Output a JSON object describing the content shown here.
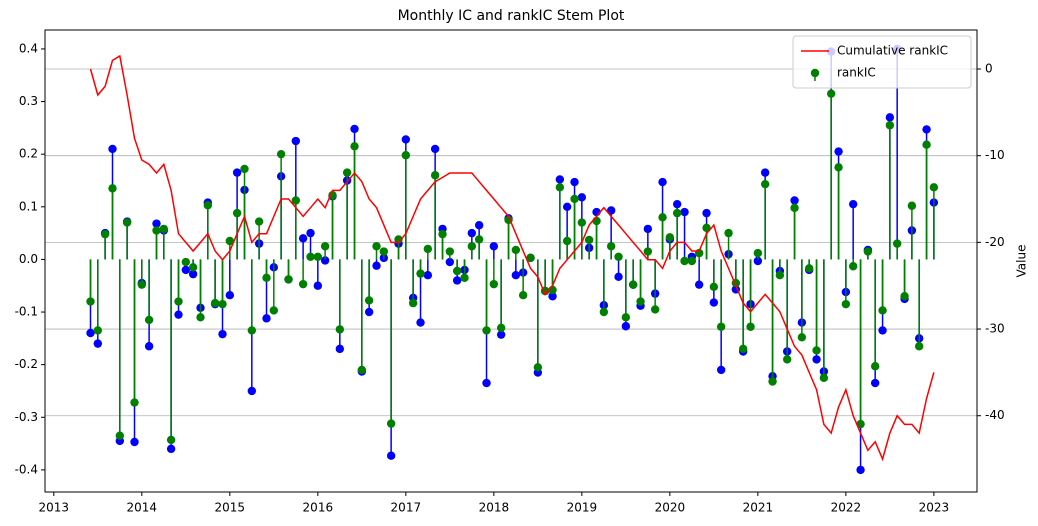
{
  "chart_data": {
    "type": "stem",
    "title": "Monthly IC and rankIC Stem Plot",
    "y2label": "Value",
    "x": [
      2013.417,
      2013.5,
      2013.583,
      2013.667,
      2013.75,
      2013.833,
      2013.917,
      2014.0,
      2014.083,
      2014.167,
      2014.25,
      2014.333,
      2014.417,
      2014.5,
      2014.583,
      2014.667,
      2014.75,
      2014.833,
      2014.917,
      2015.0,
      2015.083,
      2015.167,
      2015.25,
      2015.333,
      2015.417,
      2015.5,
      2015.583,
      2015.667,
      2015.75,
      2015.833,
      2015.917,
      2016.0,
      2016.083,
      2016.167,
      2016.25,
      2016.333,
      2016.417,
      2016.5,
      2016.583,
      2016.667,
      2016.75,
      2016.833,
      2016.917,
      2017.0,
      2017.083,
      2017.167,
      2017.25,
      2017.333,
      2017.417,
      2017.5,
      2017.583,
      2017.667,
      2017.75,
      2017.833,
      2017.917,
      2018.0,
      2018.083,
      2018.167,
      2018.25,
      2018.333,
      2018.417,
      2018.5,
      2018.583,
      2018.667,
      2018.75,
      2018.833,
      2018.917,
      2019.0,
      2019.083,
      2019.167,
      2019.25,
      2019.333,
      2019.417,
      2019.5,
      2019.583,
      2019.667,
      2019.75,
      2019.833,
      2019.917,
      2020.0,
      2020.083,
      2020.167,
      2020.25,
      2020.333,
      2020.417,
      2020.5,
      2020.583,
      2020.667,
      2020.75,
      2020.833,
      2020.917,
      2021.0,
      2021.083,
      2021.167,
      2021.25,
      2021.333,
      2021.417,
      2021.5,
      2021.583,
      2021.667,
      2021.75,
      2021.833,
      2021.917,
      2022.0,
      2022.083,
      2022.167,
      2022.25,
      2022.333,
      2022.417,
      2022.5,
      2022.583,
      2022.667,
      2022.75,
      2022.833,
      2022.917,
      2023.0
    ],
    "series": [
      {
        "name": "Cumulative rankIC",
        "color": "red",
        "type": "line",
        "axis": "y2",
        "values": [
          0,
          -3,
          -2,
          1,
          1.5,
          -3,
          -8,
          -10.5,
          -11,
          -12,
          -11,
          -14,
          -19,
          -20,
          -21,
          -20,
          -19,
          -21,
          -22,
          -21,
          -19,
          -17,
          -20,
          -19,
          -19,
          -17,
          -15,
          -15,
          -16,
          -17,
          -16,
          -15,
          -16,
          -14,
          -14,
          -13,
          -12,
          -13,
          -15,
          -16,
          -18,
          -20,
          -20,
          -19,
          -17,
          -15,
          -14,
          -13,
          -12.5,
          -12,
          -12,
          -12,
          -12,
          -13,
          -14,
          -15,
          -16,
          -17,
          -19,
          -21,
          -23,
          -24,
          -26,
          -25,
          -23,
          -22,
          -21,
          -20,
          -18,
          -17,
          -16,
          -17,
          -18,
          -19,
          -20,
          -21,
          -22,
          -22,
          -23,
          -21,
          -20,
          -20,
          -21,
          -21,
          -19,
          -18,
          -21,
          -23,
          -25,
          -27,
          -28,
          -27,
          -26,
          -27,
          -28,
          -30,
          -32,
          -33,
          -35,
          -37,
          -41,
          -42,
          -39,
          -37,
          -40,
          -42,
          -44,
          -43,
          -45,
          -42,
          -40,
          -41,
          -41,
          -42,
          -38,
          -35
        ]
      },
      {
        "color": "blue",
        "values": [
          -0.14,
          -0.16,
          0.05,
          0.21,
          -0.345,
          0.072,
          -0.347,
          -0.045,
          -0.165,
          0.068,
          0.055,
          -0.36,
          -0.105,
          -0.02,
          -0.028,
          -0.092,
          0.108,
          -0.085,
          -0.142,
          -0.068,
          0.165,
          0.132,
          -0.25,
          0.03,
          -0.112,
          -0.015,
          0.158,
          -0.038,
          0.225,
          0.04,
          0.05,
          -0.05,
          -0.002,
          0.12,
          -0.17,
          0.15,
          0.248,
          -0.213,
          -0.1,
          -0.012,
          0.003,
          -0.373,
          0.03,
          0.228,
          -0.073,
          -0.12,
          -0.03,
          0.21,
          0.058,
          -0.005,
          -0.04,
          -0.02,
          0.05,
          0.065,
          -0.235,
          0.025,
          -0.143,
          0.078,
          -0.03,
          -0.025,
          0.003,
          -0.215,
          -0.06,
          -0.07,
          0.152,
          0.1,
          0.147,
          0.118,
          0.022,
          0.09,
          -0.087,
          0.093,
          -0.033,
          -0.127,
          -0.048,
          -0.088,
          0.058,
          -0.065,
          0.147,
          0.038,
          0.105,
          0.09,
          0.005,
          -0.048,
          0.088,
          -0.082,
          -0.21,
          0.01,
          -0.057,
          -0.175,
          -0.085,
          -0.003,
          0.165,
          -0.222,
          -0.022,
          -0.175,
          0.112,
          -0.12,
          -0.02,
          -0.19,
          -0.213,
          0.395,
          0.205,
          -0.062,
          0.105,
          -0.4,
          0.018,
          -0.235,
          -0.135,
          0.27,
          0.4,
          -0.075,
          0.055,
          -0.15,
          0.247,
          0.108
        ]
      },
      {
        "name": "rankIC",
        "color": "green",
        "values": [
          -0.08,
          -0.135,
          0.048,
          0.135,
          -0.335,
          0.07,
          -0.272,
          -0.048,
          -0.115,
          0.055,
          0.058,
          -0.343,
          -0.08,
          -0.005,
          -0.015,
          -0.11,
          0.103,
          -0.083,
          -0.085,
          0.035,
          0.088,
          0.172,
          -0.135,
          0.072,
          -0.035,
          -0.097,
          0.2,
          -0.038,
          0.112,
          -0.047,
          0.005,
          0.005,
          0.025,
          0.122,
          -0.133,
          0.165,
          0.215,
          -0.21,
          -0.078,
          0.025,
          0.015,
          -0.312,
          0.038,
          0.198,
          -0.083,
          -0.027,
          0.02,
          0.16,
          0.048,
          0.015,
          -0.022,
          -0.035,
          0.025,
          0.038,
          -0.135,
          -0.047,
          -0.13,
          0.075,
          0.018,
          -0.068,
          0.003,
          -0.205,
          -0.06,
          -0.058,
          0.137,
          0.035,
          0.115,
          0.07,
          0.037,
          0.073,
          -0.1,
          0.025,
          0.005,
          -0.11,
          -0.048,
          -0.08,
          0.015,
          -0.095,
          0.08,
          0.042,
          0.088,
          -0.003,
          -0.003,
          0.012,
          0.06,
          -0.052,
          -0.128,
          0.05,
          -0.045,
          -0.17,
          -0.128,
          0.012,
          0.143,
          -0.232,
          -0.03,
          -0.19,
          0.098,
          -0.148,
          -0.017,
          -0.173,
          -0.225,
          0.315,
          0.175,
          -0.085,
          -0.013,
          -0.313,
          0.015,
          -0.203,
          -0.097,
          0.255,
          0.03,
          -0.07,
          0.102,
          -0.165,
          0.218,
          0.137
        ]
      }
    ],
    "xlim": [
      2012.9,
      2023.49
    ],
    "xticks": [
      2013,
      2014,
      2015,
      2016,
      2017,
      2018,
      2019,
      2020,
      2021,
      2022,
      2023
    ],
    "ylim": [
      -0.442,
      0.436
    ],
    "yticks": [
      -0.4,
      -0.3,
      -0.2,
      -0.1,
      {
        "value": 0,
        "label": "0.0"
      },
      0.1,
      0.2,
      0.3,
      0.4
    ],
    "y2lim": [
      -48.8,
      4.5
    ],
    "y2ticks": [
      -40,
      -30,
      -20,
      -10,
      0
    ],
    "grid": "y2",
    "legend": "upper right"
  }
}
